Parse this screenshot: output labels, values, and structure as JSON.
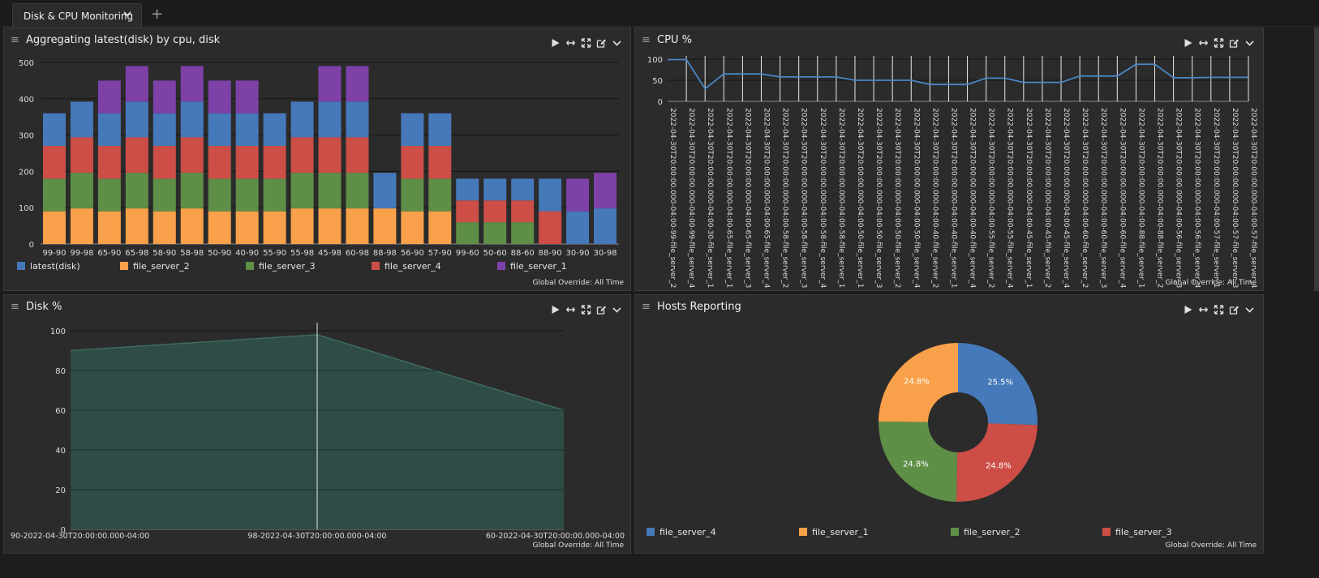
{
  "tabs": {
    "active_label": "Disk & CPU Monitoring",
    "add_label": "+"
  },
  "colors": {
    "blue": "#4679b9",
    "orange": "#f9a04a",
    "green": "#5f8f47",
    "red": "#cc4e46",
    "purple": "#7e41a8",
    "line": "#4a86c6",
    "area": "#2f4c47",
    "areaStroke": "#3e6b62"
  },
  "panels": {
    "agg": {
      "title": "Aggregating latest(disk) by cpu, disk",
      "footer": "Global Override: All Time"
    },
    "cpu": {
      "title": "CPU %",
      "footer": "Global Override: All Time"
    },
    "disk": {
      "title": "Disk %",
      "footer": "Global Override: All Time"
    },
    "hosts": {
      "title": "Hosts Reporting",
      "footer": "Global Override: All Time"
    }
  },
  "chart_data": [
    {
      "id": "agg",
      "type": "bar",
      "stacked": true,
      "title": "Aggregating latest(disk) by cpu, disk",
      "categories": [
        "99-90",
        "99-98",
        "65-90",
        "65-98",
        "58-90",
        "58-98",
        "50-90",
        "40-90",
        "55-90",
        "55-98",
        "45-98",
        "60-98",
        "88-98",
        "56-90",
        "57-90",
        "99-60",
        "50-60",
        "88-60",
        "88-90",
        "30-90",
        "30-98"
      ],
      "ylim": [
        0,
        500
      ],
      "yticks": [
        0,
        100,
        200,
        300,
        400,
        500
      ],
      "series": [
        {
          "name": "file_server_2",
          "values": [
            90,
            98,
            90,
            98,
            90,
            98,
            90,
            90,
            90,
            98,
            98,
            98,
            98,
            90,
            90,
            0,
            0,
            0,
            0,
            0,
            0
          ]
        },
        {
          "name": "file_server_3",
          "values": [
            90,
            98,
            90,
            98,
            90,
            98,
            90,
            90,
            90,
            98,
            98,
            98,
            0,
            90,
            90,
            60,
            60,
            60,
            0,
            0,
            0
          ]
        },
        {
          "name": "file_server_4",
          "values": [
            90,
            98,
            90,
            98,
            90,
            98,
            90,
            90,
            90,
            98,
            98,
            98,
            0,
            90,
            90,
            60,
            60,
            60,
            90,
            0,
            0
          ]
        },
        {
          "name": "latest(disk)",
          "values": [
            90,
            98,
            90,
            98,
            90,
            98,
            90,
            90,
            90,
            98,
            98,
            98,
            98,
            90,
            90,
            60,
            60,
            60,
            90,
            90,
            98
          ]
        },
        {
          "name": "file_server_1",
          "values": [
            0,
            0,
            90,
            98,
            90,
            98,
            90,
            90,
            0,
            0,
            98,
            98,
            0,
            0,
            0,
            0,
            0,
            0,
            0,
            90,
            98
          ]
        }
      ],
      "legend": [
        "latest(disk)",
        "file_server_2",
        "file_server_3",
        "file_server_4",
        "file_server_1"
      ]
    },
    {
      "id": "cpu",
      "type": "line",
      "title": "CPU %",
      "ylim": [
        0,
        100
      ],
      "yticks": [
        0,
        50,
        100
      ],
      "x": [
        "2022-04-30T20:00:00.000-04:00-99-file_server_2",
        "2022-04-30T20:00:00.000-04:00-99-file_server_4",
        "2022-04-30T20:00:00.000-04:00-30-file_server_1",
        "2022-04-30T20:00:00.000-04:00-65-file_server_1",
        "2022-04-30T20:00:00.000-04:00-65-file_server_3",
        "2022-04-30T20:00:00.000-04:00-65-file_server_4",
        "2022-04-30T20:00:00.000-04:00-58-file_server_2",
        "2022-04-30T20:00:00.000-04:00-58-file_server_3",
        "2022-04-30T20:00:00.000-04:00-58-file_server_4",
        "2022-04-30T20:00:00.000-04:00-58-file_server_1",
        "2022-04-30T20:00:00.000-04:00-50-file_server_1",
        "2022-04-30T20:00:00.000-04:00-50-file_server_3",
        "2022-04-30T20:00:00.000-04:00-50-file_server_2",
        "2022-04-30T20:00:00.000-04:00-50-file_server_4",
        "2022-04-30T20:00:00.000-04:00-40-file_server_2",
        "2022-04-30T20:00:00.000-04:00-40-file_server_1",
        "2022-04-30T20:00:00.000-04:00-40-file_server_4",
        "2022-04-30T20:00:00.000-04:00-55-file_server_2",
        "2022-04-30T20:00:00.000-04:00-55-file_server_4",
        "2022-04-30T20:00:00.000-04:00-45-file_server_1",
        "2022-04-30T20:00:00.000-04:00-45-file_server_2",
        "2022-04-30T20:00:00.000-04:00-45-file_server_4",
        "2022-04-30T20:00:00.000-04:00-60-file_server_2",
        "2022-04-30T20:00:00.000-04:00-60-file_server_3",
        "2022-04-30T20:00:00.000-04:00-60-file_server_4",
        "2022-04-30T20:00:00.000-04:00-88-file_server_1",
        "2022-04-30T20:00:00.000-04:00-88-file_server_2",
        "2022-04-30T20:00:00.000-04:00-56-file_server_3",
        "2022-04-30T20:00:00.000-04:00-56-file_server_4",
        "2022-04-30T20:00:00.000-04:00-57-file_server_1",
        "2022-04-30T20:00:00.000-04:00-57-file_server_3",
        "2022-04-30T20:00:00.000-04:00-57-file_server_4"
      ],
      "values": [
        99,
        99,
        30,
        65,
        65,
        65,
        58,
        58,
        58,
        58,
        50,
        50,
        50,
        50,
        40,
        40,
        40,
        55,
        55,
        45,
        45,
        45,
        60,
        60,
        60,
        88,
        88,
        56,
        56,
        57,
        57,
        57
      ]
    },
    {
      "id": "disk",
      "type": "area",
      "title": "Disk %",
      "ylim": [
        0,
        100
      ],
      "yticks": [
        0,
        20,
        40,
        60,
        80,
        100
      ],
      "x": [
        "90-2022-04-30T20:00:00.000-04:00",
        "98-2022-04-30T20:00:00.000-04:00",
        "60-2022-04-30T20:00:00.000-04:00"
      ],
      "values": [
        90,
        98,
        60
      ]
    },
    {
      "id": "hosts",
      "type": "pie",
      "donut": true,
      "title": "Hosts Reporting",
      "labels": [
        "file_server_4",
        "file_server_3",
        "file_server_2",
        "file_server_1"
      ],
      "values": [
        25.5,
        24.8,
        24.8,
        24.8
      ],
      "value_labels": [
        "25.5%",
        "24.8%",
        "24.8%",
        "24.8%"
      ],
      "legend": [
        "file_server_4",
        "file_server_1",
        "file_server_2",
        "file_server_3"
      ]
    }
  ]
}
